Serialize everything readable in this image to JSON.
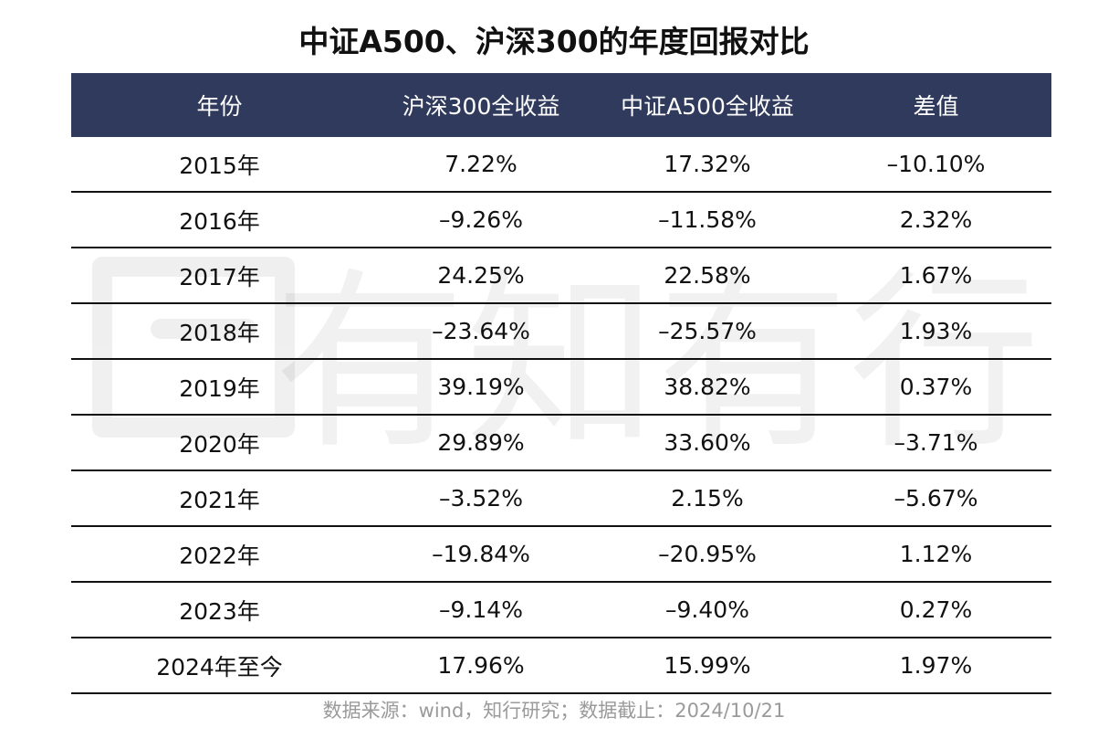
{
  "chart_data": {
    "type": "table",
    "title": "中证A500、沪深300的年度回报对比",
    "columns": [
      "年份",
      "沪深300全收益",
      "中证A500全收益",
      "差值"
    ],
    "rows": [
      [
        "2015年",
        "7.22%",
        "17.32%",
        "–10.10%"
      ],
      [
        "2016年",
        "–9.26%",
        "–11.58%",
        "2.32%"
      ],
      [
        "2017年",
        "24.25%",
        "22.58%",
        "1.67%"
      ],
      [
        "2018年",
        "–23.64%",
        "–25.57%",
        "1.93%"
      ],
      [
        "2019年",
        "39.19%",
        "38.82%",
        "0.37%"
      ],
      [
        "2020年",
        "29.89%",
        "33.60%",
        "–3.71%"
      ],
      [
        "2021年",
        "–3.52%",
        "2.15%",
        "–5.67%"
      ],
      [
        "2022年",
        "–19.84%",
        "–20.95%",
        "1.12%"
      ],
      [
        "2023年",
        "–9.14%",
        "–9.40%",
        "0.27%"
      ],
      [
        "2024年至今",
        "17.96%",
        "15.99%",
        "1.97%"
      ]
    ],
    "source": "数据来源：wind，知行研究；数据截止：2024/10/21"
  },
  "watermark": {
    "text": "有知有行"
  },
  "colors": {
    "header_bg": "#2f3a5c",
    "header_text": "#ffffff",
    "body_text": "#111111",
    "rule": "#111111",
    "source_text": "#9a9a9a"
  }
}
